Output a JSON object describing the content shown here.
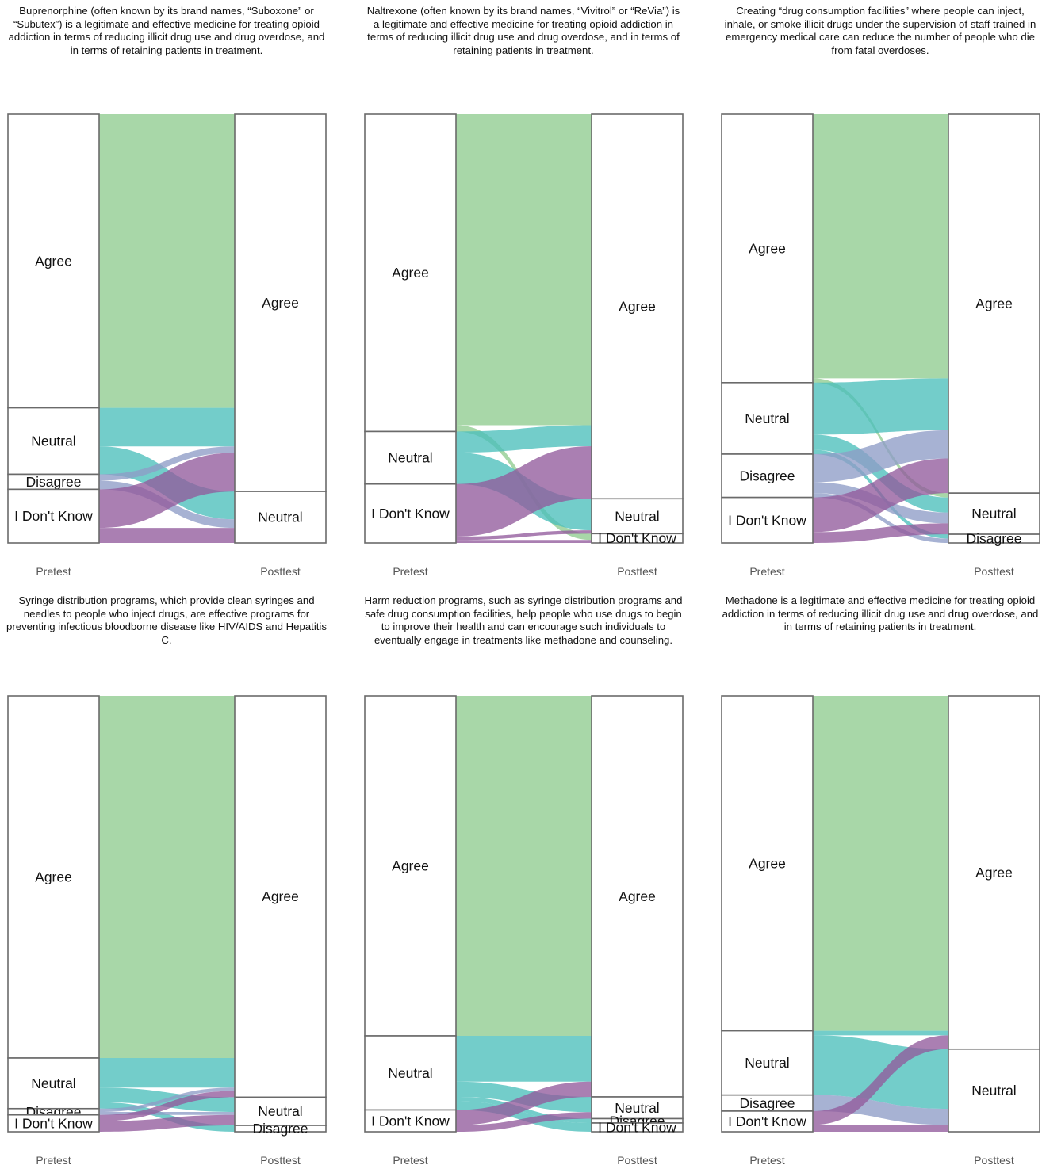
{
  "colors": {
    "Agree": "#8fcc8f",
    "Neutral": "#4cbfbb",
    "Disagree": "#8e9cc6",
    "I Don't Know": "#925b9c",
    "stratum_border": "#6a6a6a"
  },
  "chart_data": [
    {
      "type": "alluvial",
      "title": "Buprenorphine (often known by its brand names, “Suboxone” or “Subutex”) is a legitimate and effective medicine for treating opioid addiction in terms of reducing illicit drug use and drug overdose, and in terms of retaining patients in treatment.",
      "axes": [
        "Pretest",
        "Posttest"
      ],
      "pretest_order": [
        "Agree",
        "Neutral",
        "Disagree",
        "I Don't Know"
      ],
      "posttest_order": [
        "Agree",
        "Neutral"
      ],
      "flows": [
        {
          "from": "Agree",
          "to": "Agree",
          "value": 68.5
        },
        {
          "from": "Neutral",
          "to": "Agree",
          "value": 9.0
        },
        {
          "from": "Neutral",
          "to": "Neutral",
          "value": 6.5
        },
        {
          "from": "Disagree",
          "to": "Agree",
          "value": 1.5
        },
        {
          "from": "Disagree",
          "to": "Neutral",
          "value": 2.0
        },
        {
          "from": "I Don't Know",
          "to": "Agree",
          "value": 9.0
        },
        {
          "from": "I Don't Know",
          "to": "Neutral",
          "value": 3.5
        }
      ]
    },
    {
      "type": "alluvial",
      "title": "Naltrexone (often known by its brand names, “Vivitrol” or “ReVia”) is a legitimate and effective medicine for treating opioid addiction in terms of reducing illicit drug use and drug overdose, and in terms of retaining patients in treatment.",
      "axes": [
        "Pretest",
        "Posttest"
      ],
      "pretest_order": [
        "Agree",
        "Neutral",
        "I Don't Know"
      ],
      "posttest_order": [
        "Agree",
        "Neutral",
        "I Don't Know"
      ],
      "flows": [
        {
          "from": "Agree",
          "to": "Agree",
          "value": 74.0
        },
        {
          "from": "Agree",
          "to": "I Don't Know",
          "value": 1.5
        },
        {
          "from": "Neutral",
          "to": "Agree",
          "value": 5.0
        },
        {
          "from": "Neutral",
          "to": "Neutral",
          "value": 7.5
        },
        {
          "from": "I Don't Know",
          "to": "Agree",
          "value": 12.5
        },
        {
          "from": "I Don't Know",
          "to": "Neutral",
          "value": 0.8
        },
        {
          "from": "I Don't Know",
          "to": "I Don't Know",
          "value": 0.7
        }
      ]
    },
    {
      "type": "alluvial",
      "title": "Creating “drug consumption facilities” where people can inject, inhale, or smoke illicit drugs under the supervision of staff trained in emergency medical care can reduce the number of people who die from fatal overdoses.",
      "axes": [
        "Pretest",
        "Posttest"
      ],
      "pretest_order": [
        "Agree",
        "Neutral",
        "Disagree",
        "I Don't Know"
      ],
      "posttest_order": [
        "Agree",
        "Neutral",
        "Disagree"
      ],
      "flows": [
        {
          "from": "Agree",
          "to": "Agree",
          "value": 61.0
        },
        {
          "from": "Agree",
          "to": "Neutral",
          "value": 1.0
        },
        {
          "from": "Neutral",
          "to": "Agree",
          "value": 12.0
        },
        {
          "from": "Neutral",
          "to": "Neutral",
          "value": 3.5
        },
        {
          "from": "Neutral",
          "to": "Disagree",
          "value": 1.0
        },
        {
          "from": "Disagree",
          "to": "Agree",
          "value": 6.5
        },
        {
          "from": "Disagree",
          "to": "Neutral",
          "value": 2.5
        },
        {
          "from": "Disagree",
          "to": "Disagree",
          "value": 1.0
        },
        {
          "from": "I Don't Know",
          "to": "Agree",
          "value": 8.0
        },
        {
          "from": "I Don't Know",
          "to": "Neutral",
          "value": 2.5
        }
      ]
    },
    {
      "type": "alluvial",
      "title": "Syringe distribution programs, which provide clean syringes and needles to people who inject drugs, are effective programs for preventing infectious bloodborne disease like HIV/AIDS and Hepatitis C.",
      "axes": [
        "Pretest",
        "Posttest"
      ],
      "pretest_order": [
        "Agree",
        "Neutral",
        "Disagree",
        "I Don't Know"
      ],
      "posttest_order": [
        "Agree",
        "Neutral",
        "Disagree"
      ],
      "flows": [
        {
          "from": "Agree",
          "to": "Agree",
          "value": 86.0
        },
        {
          "from": "Neutral",
          "to": "Agree",
          "value": 7.0
        },
        {
          "from": "Neutral",
          "to": "Neutral",
          "value": 3.5
        },
        {
          "from": "Neutral",
          "to": "Disagree",
          "value": 1.5
        },
        {
          "from": "Disagree",
          "to": "Agree",
          "value": 0.8
        },
        {
          "from": "Disagree",
          "to": "Neutral",
          "value": 0.7
        },
        {
          "from": "I Don't Know",
          "to": "Agree",
          "value": 1.5
        },
        {
          "from": "I Don't Know",
          "to": "Neutral",
          "value": 2.5
        }
      ]
    },
    {
      "type": "alluvial",
      "title": "Harm reduction programs, such as syringe distribution programs and safe drug consumption facilities, help people who use drugs to begin to improve their health and can encourage such individuals to eventually engage in treatments like methadone and counseling.",
      "axes": [
        "Pretest",
        "Posttest"
      ],
      "pretest_order": [
        "Agree",
        "Neutral",
        "I Don't Know"
      ],
      "posttest_order": [
        "Agree",
        "Neutral",
        "Disagree",
        "I Don't Know"
      ],
      "flows": [
        {
          "from": "Agree",
          "to": "Agree",
          "value": 78.0
        },
        {
          "from": "Neutral",
          "to": "Agree",
          "value": 10.5
        },
        {
          "from": "Neutral",
          "to": "Neutral",
          "value": 3.5
        },
        {
          "from": "Neutral",
          "to": "Disagree",
          "value": 1.0
        },
        {
          "from": "Neutral",
          "to": "I Don't Know",
          "value": 2.0
        },
        {
          "from": "I Don't Know",
          "to": "Agree",
          "value": 3.5
        },
        {
          "from": "I Don't Know",
          "to": "Neutral",
          "value": 1.5
        }
      ]
    },
    {
      "type": "alluvial",
      "title": "Methadone is a legitimate and effective medicine for treating opioid addiction in terms of reducing illicit drug use and drug overdose, and in terms of retaining patients in treatment.",
      "axes": [
        "Pretest",
        "Posttest"
      ],
      "pretest_order": [
        "Agree",
        "Neutral",
        "Disagree",
        "I Don't Know"
      ],
      "posttest_order": [
        "Agree",
        "Neutral"
      ],
      "flows": [
        {
          "from": "Agree",
          "to": "Agree",
          "value": 73.0
        },
        {
          "from": "Neutral",
          "to": "Agree",
          "value": 1.0
        },
        {
          "from": "Neutral",
          "to": "Neutral",
          "value": 13.0
        },
        {
          "from": "Disagree",
          "to": "Neutral",
          "value": 3.5
        },
        {
          "from": "I Don't Know",
          "to": "Agree",
          "value": 3.0
        },
        {
          "from": "I Don't Know",
          "to": "Neutral",
          "value": 1.5
        }
      ]
    }
  ]
}
